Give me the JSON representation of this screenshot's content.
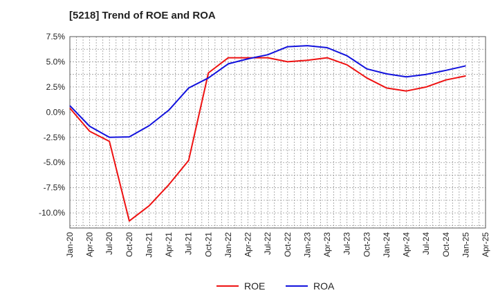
{
  "chart_data": {
    "type": "line",
    "title": "[5218]  Trend of ROE and ROA",
    "xlabel": "",
    "ylabel": "",
    "x": [
      "Jan-20",
      "Apr-20",
      "Jul-20",
      "Oct-20",
      "Jan-21",
      "Apr-21",
      "Jul-21",
      "Oct-21",
      "Jan-22",
      "Apr-22",
      "Jul-22",
      "Oct-22",
      "Jan-23",
      "Apr-23",
      "Jul-23",
      "Oct-23",
      "Jan-24",
      "Apr-24",
      "Jul-24",
      "Oct-24",
      "Jan-25",
      "Apr-25"
    ],
    "yticks": [
      "7.5%",
      "5.0%",
      "2.5%",
      "0.0%",
      "-2.5%",
      "-5.0%",
      "-7.5%",
      "-10.0%"
    ],
    "ylim": [
      -11.5,
      7.5
    ],
    "grid": true,
    "legend_position": "bottom",
    "series": [
      {
        "name": "ROE",
        "color": "#ee1111",
        "values": [
          0.4,
          -1.9,
          -2.9,
          -10.8,
          -9.3,
          -7.2,
          -4.8,
          3.9,
          5.4,
          5.4,
          5.4,
          5.0,
          5.15,
          5.4,
          4.7,
          3.4,
          2.4,
          2.1,
          2.5,
          3.2,
          3.6,
          null
        ]
      },
      {
        "name": "ROA",
        "color": "#1111dd",
        "values": [
          0.65,
          -1.4,
          -2.5,
          -2.45,
          -1.35,
          0.2,
          2.4,
          3.4,
          4.8,
          5.3,
          5.7,
          6.5,
          6.6,
          6.4,
          5.6,
          4.3,
          3.8,
          3.5,
          3.75,
          4.15,
          4.6,
          null
        ]
      }
    ]
  }
}
